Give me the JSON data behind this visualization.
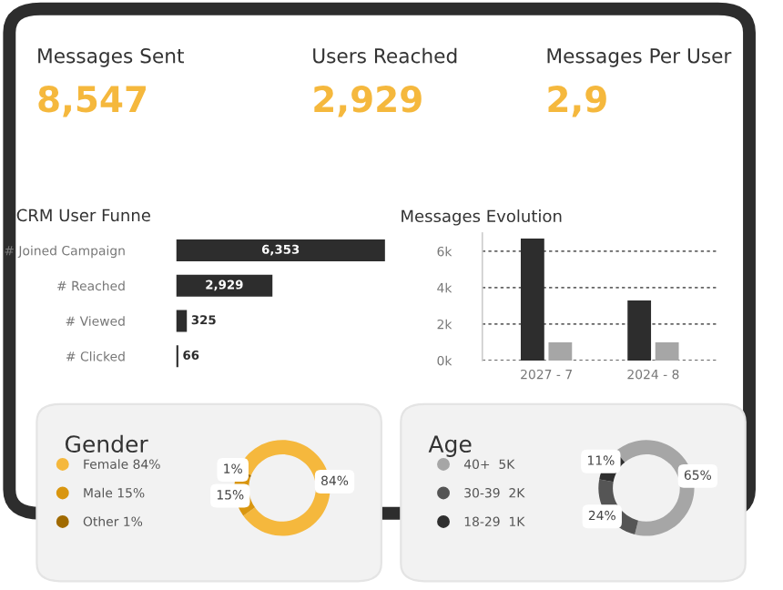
{
  "chart_data": [
    {
      "type": "other",
      "color": "#f5b83d",
      "annotations": [
        "Messages Sent",
        "8,547",
        "Users Reached",
        "2,929",
        "Messages Per User",
        "2,9"
      ]
    },
    {
      "type": "bar",
      "orientation": "horizontal",
      "title": "CRM User Funne",
      "categories": [
        "# Joined Campaign",
        "# Reached",
        "# Viewed",
        "# Clicked"
      ],
      "values": [
        6353,
        2929,
        325,
        66
      ],
      "color": "#2d2d2d",
      "value_labels": [
        "6,353",
        "2,929",
        "325",
        "66"
      ]
    },
    {
      "type": "bar",
      "title": "Messages Evolution",
      "categories": [
        "2027 - 7",
        "2024 - 8"
      ],
      "series": [
        {
          "color": "#2d2d2d",
          "values": [
            6700,
            3300
          ]
        },
        {
          "color": "#a6a6a6",
          "values": [
            1000,
            1000
          ]
        }
      ],
      "ylim": [
        0,
        7000
      ],
      "yticks": [
        {
          "value": 0,
          "label": "0k"
        },
        {
          "value": 2000,
          "label": "2k"
        },
        {
          "value": 4000,
          "label": "4k"
        },
        {
          "value": 6000,
          "label": "6k"
        }
      ],
      "grid": "y"
    },
    {
      "type": "donut",
      "title": "Gender",
      "categories": [
        "Female 84%",
        "Male 15%",
        "Other 1%"
      ],
      "values": [
        84,
        15,
        1
      ],
      "colors": [
        "#f5b83d",
        "#d9960f",
        "#a06a00"
      ],
      "value_labels": [
        "84%",
        "15%",
        "1%"
      ],
      "legend": "left"
    },
    {
      "type": "donut",
      "title": "Age",
      "categories": [
        "40+  5K",
        "30-39  2K",
        "18-29  1K"
      ],
      "values": [
        65,
        24,
        11
      ],
      "colors": [
        "#a6a6a6",
        "#555555",
        "#2f2f2f"
      ],
      "value_labels": [
        "65%",
        "24%",
        "11%"
      ],
      "legend": "left"
    }
  ]
}
